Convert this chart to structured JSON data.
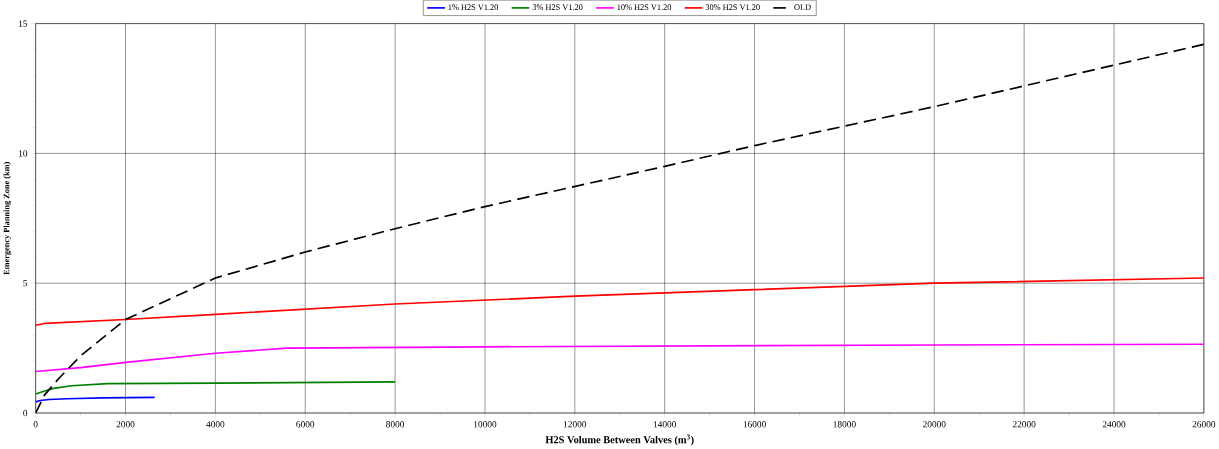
{
  "chart_data": {
    "type": "line",
    "xlabel": "H2S Volume Between Valves (m$^{3}$)",
    "ylabel": "Emergency Planning Zone (km)",
    "xlim": [
      0,
      26000
    ],
    "ylim": [
      0,
      15
    ],
    "xticks": [
      0,
      2000,
      4000,
      6000,
      8000,
      10000,
      12000,
      14000,
      16000,
      18000,
      20000,
      22000,
      24000,
      26000
    ],
    "yticks": [
      0,
      5,
      10,
      15
    ],
    "grid": true,
    "legend": "top",
    "marker": "none",
    "series": [
      {
        "name": "1% H2S V1.20",
        "color": "#0000ff",
        "line_style": "solid",
        "x": [
          0,
          100,
          300,
          700,
          1500,
          2650
        ],
        "values": [
          0.43,
          0.48,
          0.52,
          0.55,
          0.58,
          0.6
        ]
      },
      {
        "name": "3% H2S V1.20",
        "color": "#008000",
        "line_style": "solid",
        "x": [
          0,
          200,
          400,
          800,
          1600,
          4000,
          8000
        ],
        "values": [
          0.73,
          0.85,
          0.95,
          1.05,
          1.13,
          1.15,
          1.2
        ]
      },
      {
        "name": "10% H2S V1.20",
        "color": "#ff00ff",
        "line_style": "solid",
        "x": [
          0,
          1000,
          2000,
          4000,
          5600,
          10000,
          20000,
          26000
        ],
        "values": [
          1.6,
          1.75,
          1.95,
          2.3,
          2.5,
          2.55,
          2.62,
          2.65
        ]
      },
      {
        "name": "30% H2S V1.20",
        "color": "#ff0000",
        "line_style": "solid",
        "x": [
          0,
          200,
          2000,
          4000,
          8000,
          12000,
          16000,
          20000,
          26000
        ],
        "values": [
          3.38,
          3.45,
          3.6,
          3.8,
          4.2,
          4.5,
          4.75,
          5.0,
          5.2
        ]
      },
      {
        "name": "OLD",
        "color": "#000000",
        "line_style": "dashed",
        "x": [
          0,
          200,
          500,
          1000,
          2000,
          4000,
          6000,
          8000,
          10000,
          14000,
          16000,
          20000,
          26000
        ],
        "values": [
          0,
          0.7,
          1.3,
          2.2,
          3.6,
          5.2,
          6.2,
          7.1,
          7.95,
          9.5,
          10.3,
          11.8,
          14.2
        ]
      }
    ]
  }
}
